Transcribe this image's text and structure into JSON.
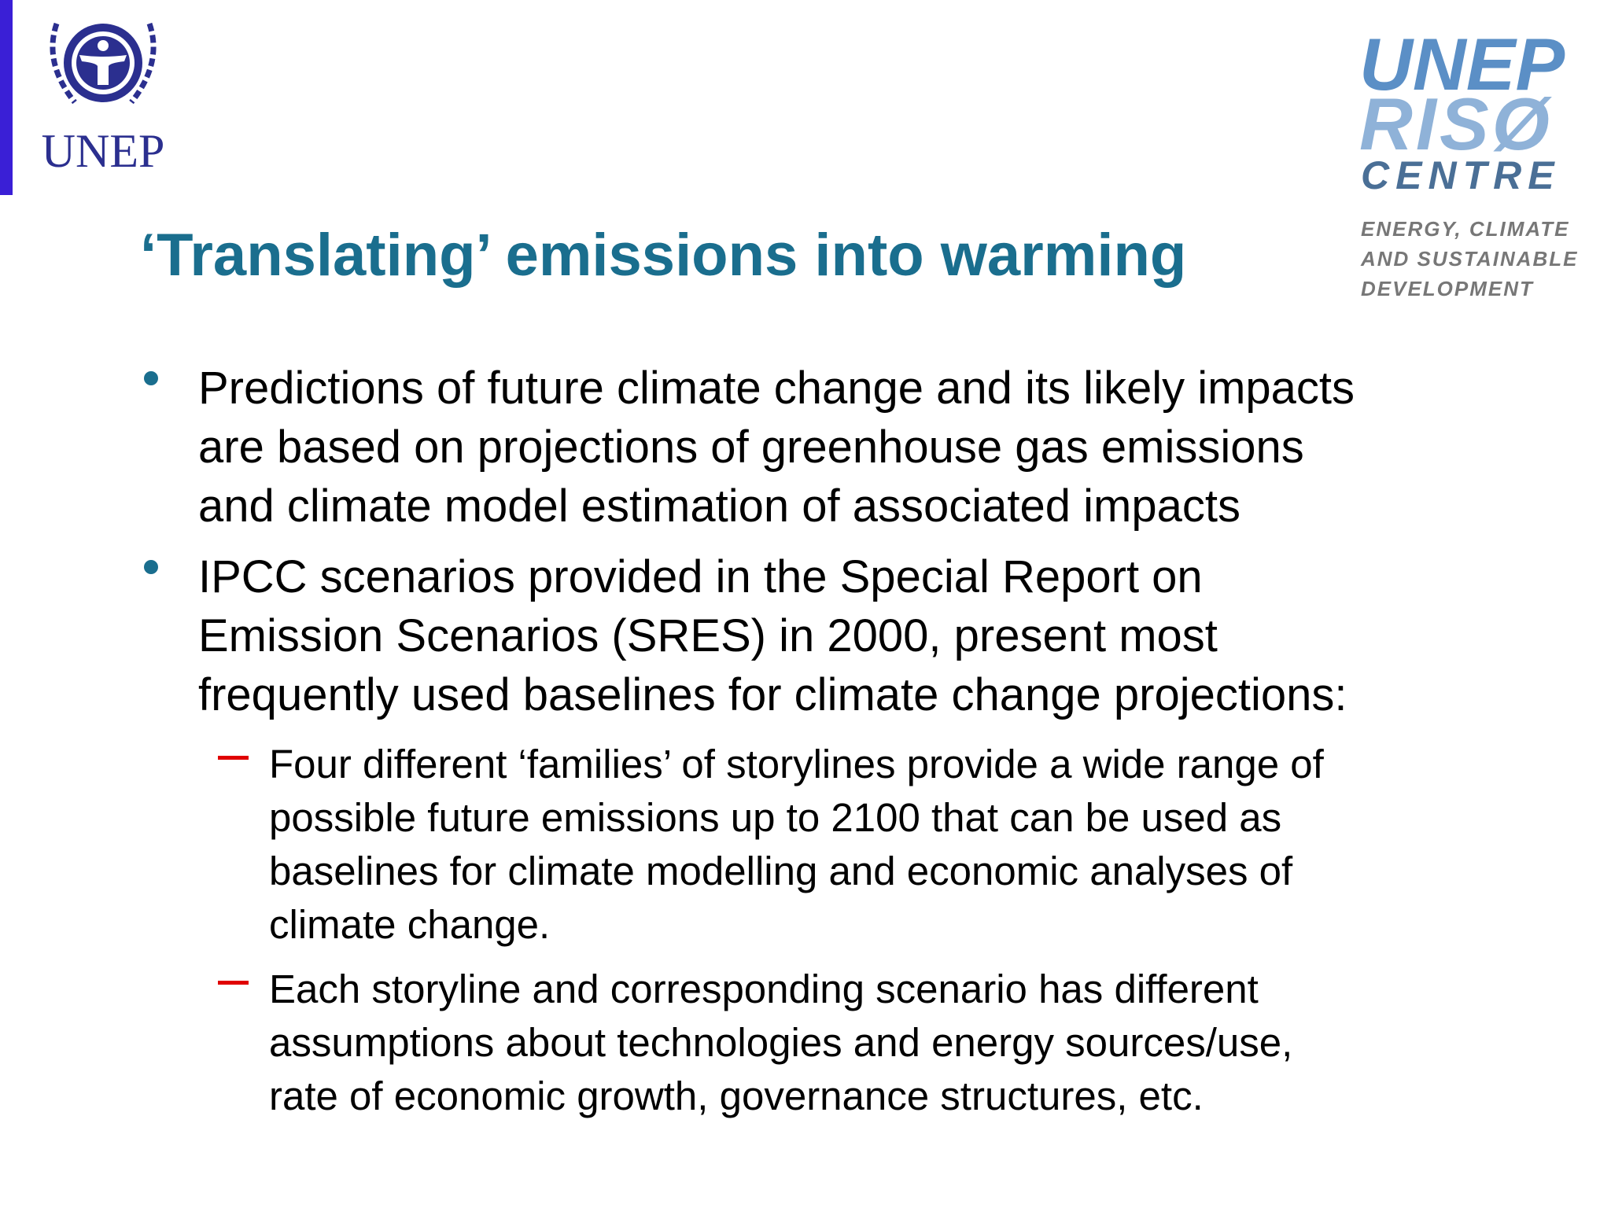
{
  "logos": {
    "left": "UNEP",
    "right": {
      "line1": "UNEP",
      "line2": "RISØ",
      "line3": "CENTRE",
      "tagline": [
        "ENERGY, CLIMATE",
        "AND SUSTAINABLE",
        "DEVELOPMENT"
      ]
    }
  },
  "title": "‘Translating’ emissions into warming",
  "bullets": [
    {
      "lines": [
        "Predictions of future climate change and its likely impacts",
        "are based on projections of greenhouse gas emissions",
        "and climate model estimation of associated impacts"
      ]
    },
    {
      "lines": [
        "IPCC scenarios provided in the Special Report on",
        "Emission Scenarios (SRES) in 2000, present most",
        "frequently used baselines for climate change projections:"
      ],
      "sub": [
        {
          "lines": [
            "Four different ‘families’ of storylines provide a wide range of",
            "possible future emissions up to 2100 that can be used as",
            "baselines for climate modelling and economic analyses of",
            "climate change."
          ]
        },
        {
          "lines": [
            "Each storyline and corresponding scenario has different",
            "assumptions about technologies and energy sources/use,",
            "rate of economic growth, governance structures, etc."
          ]
        }
      ]
    }
  ]
}
